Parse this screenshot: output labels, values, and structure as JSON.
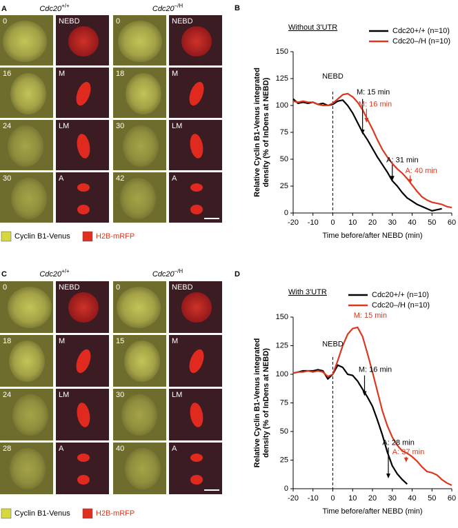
{
  "microscopy": [
    {
      "label": "A",
      "columns": [
        {
          "genotype": {
            "gene": "Cdc20",
            "allele": "+/+"
          },
          "rows": [
            {
              "time": "0",
              "stage": "NEBD"
            },
            {
              "time": "16",
              "stage": "M"
            },
            {
              "time": "24",
              "stage": "LM"
            },
            {
              "time": "30",
              "stage": "A"
            }
          ]
        },
        {
          "genotype": {
            "gene": "Cdc20",
            "allele": "–/H"
          },
          "rows": [
            {
              "time": "0",
              "stage": "NEBD"
            },
            {
              "time": "18",
              "stage": "M"
            },
            {
              "time": "30",
              "stage": "LM"
            },
            {
              "time": "42",
              "stage": "A"
            }
          ]
        }
      ],
      "legend": [
        "Cyclin B1-Venus",
        "H2B-mRFP"
      ]
    },
    {
      "label": "C",
      "columns": [
        {
          "genotype": {
            "gene": "Cdc20",
            "allele": "+/+"
          },
          "rows": [
            {
              "time": "0",
              "stage": "NEBD"
            },
            {
              "time": "18",
              "stage": "M"
            },
            {
              "time": "24",
              "stage": "LM"
            },
            {
              "time": "28",
              "stage": "A"
            }
          ]
        },
        {
          "genotype": {
            "gene": "Cdc20",
            "allele": "–/H"
          },
          "rows": [
            {
              "time": "0",
              "stage": "NEBD"
            },
            {
              "time": "15",
              "stage": "M"
            },
            {
              "time": "30",
              "stage": "LM"
            },
            {
              "time": "40",
              "stage": "A"
            }
          ]
        }
      ],
      "legend": [
        "Cyclin B1-Venus",
        "H2B-mRFP"
      ]
    }
  ],
  "chart_data": [
    {
      "type": "line",
      "label": "B",
      "title": "Without 3'UTR",
      "ylabel": [
        "Relative Cyclin B1-Venus integrated",
        "density (% of InDens at NEBD)"
      ],
      "xlabel": "Time before/after NEBD (min)",
      "x": [
        -20,
        -17.5,
        -15,
        -12.5,
        -10,
        -7.5,
        -5,
        -2.5,
        0,
        2.5,
        5,
        7.5,
        10,
        12.5,
        15,
        17.5,
        20,
        22.5,
        25,
        27.5,
        30,
        32.5,
        35,
        37.5,
        40,
        42.5,
        45,
        47.5,
        50,
        52.5,
        55,
        57.5,
        60
      ],
      "series": [
        {
          "name": "Cdc20+/+ (n=10)",
          "color": "#000000",
          "values": [
            106,
            102,
            103,
            102,
            103,
            101,
            102,
            100,
            101,
            104,
            105,
            100,
            93,
            84,
            75,
            68,
            60,
            52,
            45,
            38,
            30,
            25,
            19,
            14,
            11,
            8,
            6,
            4,
            2,
            3,
            4,
            null,
            null
          ]
        },
        {
          "name": "Cdc20–/H (n=10)",
          "color": "#d9381e",
          "values": [
            104,
            103,
            104,
            103,
            103,
            101,
            100,
            100,
            102,
            106,
            110,
            111,
            108,
            103,
            96,
            87,
            78,
            68,
            59,
            52,
            46,
            41,
            37,
            32,
            26,
            20,
            15,
            12,
            10,
            9,
            8,
            6,
            5
          ]
        }
      ],
      "annotations": [
        {
          "text": "NEBD",
          "color": "#000000"
        },
        {
          "text": "M: 15 min",
          "color": "#000000"
        },
        {
          "text": "M: 16 min",
          "color": "#d9381e"
        },
        {
          "text": "A: 31 min",
          "color": "#000000"
        },
        {
          "text": "A: 40 min",
          "color": "#d9381e"
        }
      ],
      "xlim": [
        -20,
        60
      ],
      "xticks": [
        -20,
        -10,
        0,
        10,
        20,
        30,
        40,
        50,
        60
      ],
      "ylim": [
        0,
        150
      ],
      "yticks": [
        0,
        25,
        50,
        75,
        100,
        125,
        150
      ]
    },
    {
      "type": "line",
      "label": "D",
      "title": "With 3'UTR",
      "ylabel": [
        "Relative Cyclin B1-Venus integrated",
        "density (% of InDens at NEBD)"
      ],
      "xlabel": "Time before/after NEBD (min)",
      "x": [
        -20,
        -17.5,
        -15,
        -12.5,
        -10,
        -7.5,
        -5,
        -2.5,
        0,
        2.5,
        5,
        7.5,
        10,
        12.5,
        15,
        17.5,
        20,
        22.5,
        25,
        27.5,
        30,
        32.5,
        35,
        37.5,
        40,
        42.5,
        45,
        47.5,
        50,
        52.5,
        55,
        57.5,
        60
      ],
      "series": [
        {
          "name": "Cdc20+/+ (n=10)",
          "color": "#000000",
          "values": [
            101,
            102,
            103,
            103,
            103,
            104,
            103,
            96,
            100,
            108,
            106,
            100,
            99,
            94,
            87,
            80,
            72,
            60,
            47,
            32,
            20,
            13,
            8,
            4,
            null,
            null,
            null,
            null,
            null,
            null,
            null,
            null,
            null
          ]
        },
        {
          "name": "Cdc20–/H (n=10)",
          "color": "#d9381e",
          "values": [
            101,
            102,
            102,
            103,
            102,
            103,
            102,
            98,
            100,
            112,
            125,
            135,
            140,
            141,
            133,
            118,
            102,
            85,
            68,
            55,
            45,
            38,
            33,
            31,
            28,
            24,
            19,
            15,
            14,
            12,
            8,
            5,
            3
          ]
        }
      ],
      "annotations": [
        {
          "text": "NEBD",
          "color": "#000000"
        },
        {
          "text": "M: 15 min",
          "color": "#d9381e"
        },
        {
          "text": "M: 16 min",
          "color": "#000000"
        },
        {
          "text": "A: 28 min",
          "color": "#000000"
        },
        {
          "text": "A: 37 min",
          "color": "#d9381e"
        }
      ],
      "xlim": [
        -20,
        60
      ],
      "xticks": [
        -20,
        -10,
        0,
        10,
        20,
        30,
        40,
        50,
        60
      ],
      "ylim": [
        0,
        150
      ],
      "yticks": [
        0,
        25,
        50,
        75,
        100,
        125,
        150
      ]
    }
  ]
}
